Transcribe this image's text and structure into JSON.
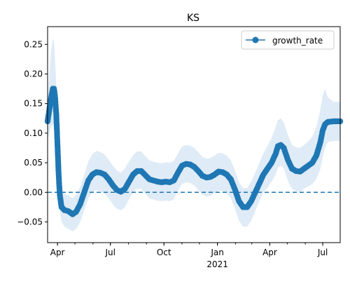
{
  "chart_data": {
    "type": "line",
    "title": "KS",
    "xlabel": "",
    "ylabel": "",
    "ylim": [
      -0.085,
      0.28
    ],
    "xlim": [
      "2020-03-15",
      "2021-07-31"
    ],
    "grid": false,
    "legend": {
      "position": "top-right",
      "entries": [
        "growth_rate"
      ]
    },
    "colors": {
      "series": "#1f77b4",
      "band": "#dce9f5",
      "zero_line": "#1f77b4"
    },
    "x_major_ticks": [
      {
        "date": "2020-04-01",
        "label": "Apr"
      },
      {
        "date": "2020-07-01",
        "label": "Jul"
      },
      {
        "date": "2020-10-01",
        "label": "Oct"
      },
      {
        "date": "2021-01-01",
        "label": "Jan"
      },
      {
        "date": "2021-04-01",
        "label": "Apr"
      },
      {
        "date": "2021-07-01",
        "label": "Jul"
      }
    ],
    "x_secondary_label": "2021",
    "y_ticks": [
      -0.05,
      0.0,
      0.05,
      0.1,
      0.15,
      0.2,
      0.25
    ],
    "y_tick_labels": [
      "−0.05",
      "0.00",
      "0.05",
      "0.10",
      "0.15",
      "0.20",
      "0.25"
    ],
    "reference_line": {
      "y": 0.0,
      "style": "dashed"
    },
    "series": [
      {
        "name": "growth_rate",
        "marker": "circle",
        "points": [
          [
            "2020-03-15",
            0.12
          ],
          [
            "2020-03-18",
            0.14
          ],
          [
            "2020-03-21",
            0.16
          ],
          [
            "2020-03-24",
            0.175
          ],
          [
            "2020-03-26",
            0.175
          ],
          [
            "2020-03-28",
            0.16
          ],
          [
            "2020-03-30",
            0.13
          ],
          [
            "2020-04-01",
            0.08
          ],
          [
            "2020-04-03",
            0.03
          ],
          [
            "2020-04-05",
            -0.005
          ],
          [
            "2020-04-08",
            -0.025
          ],
          [
            "2020-04-13",
            -0.03
          ],
          [
            "2020-04-20",
            -0.032
          ],
          [
            "2020-04-27",
            -0.037
          ],
          [
            "2020-05-03",
            -0.033
          ],
          [
            "2020-05-10",
            -0.02
          ],
          [
            "2020-05-17",
            0.0
          ],
          [
            "2020-05-24",
            0.02
          ],
          [
            "2020-05-31",
            0.03
          ],
          [
            "2020-06-07",
            0.034
          ],
          [
            "2020-06-14",
            0.033
          ],
          [
            "2020-06-21",
            0.03
          ],
          [
            "2020-06-28",
            0.022
          ],
          [
            "2020-07-05",
            0.012
          ],
          [
            "2020-07-12",
            0.004
          ],
          [
            "2020-07-19",
            0.001
          ],
          [
            "2020-07-26",
            0.006
          ],
          [
            "2020-08-02",
            0.018
          ],
          [
            "2020-08-09",
            0.03
          ],
          [
            "2020-08-16",
            0.036
          ],
          [
            "2020-08-23",
            0.036
          ],
          [
            "2020-08-30",
            0.029
          ],
          [
            "2020-09-06",
            0.022
          ],
          [
            "2020-09-13",
            0.02
          ],
          [
            "2020-09-20",
            0.018
          ],
          [
            "2020-09-27",
            0.017
          ],
          [
            "2020-10-04",
            0.018
          ],
          [
            "2020-10-11",
            0.017
          ],
          [
            "2020-10-18",
            0.02
          ],
          [
            "2020-10-25",
            0.033
          ],
          [
            "2020-11-01",
            0.045
          ],
          [
            "2020-11-08",
            0.048
          ],
          [
            "2020-11-15",
            0.047
          ],
          [
            "2020-11-22",
            0.043
          ],
          [
            "2020-11-29",
            0.036
          ],
          [
            "2020-12-06",
            0.028
          ],
          [
            "2020-12-13",
            0.025
          ],
          [
            "2020-12-20",
            0.026
          ],
          [
            "2020-12-27",
            0.03
          ],
          [
            "2021-01-03",
            0.035
          ],
          [
            "2021-01-10",
            0.034
          ],
          [
            "2021-01-17",
            0.03
          ],
          [
            "2021-01-24",
            0.022
          ],
          [
            "2021-01-31",
            0.005
          ],
          [
            "2021-02-07",
            -0.015
          ],
          [
            "2021-02-14",
            -0.025
          ],
          [
            "2021-02-21",
            -0.025
          ],
          [
            "2021-02-28",
            -0.015
          ],
          [
            "2021-03-07",
            0.0
          ],
          [
            "2021-03-14",
            0.015
          ],
          [
            "2021-03-21",
            0.03
          ],
          [
            "2021-03-28",
            0.04
          ],
          [
            "2021-04-04",
            0.05
          ],
          [
            "2021-04-11",
            0.065
          ],
          [
            "2021-04-15",
            0.078
          ],
          [
            "2021-04-20",
            0.08
          ],
          [
            "2021-04-25",
            0.075
          ],
          [
            "2021-05-02",
            0.055
          ],
          [
            "2021-05-09",
            0.04
          ],
          [
            "2021-05-16",
            0.036
          ],
          [
            "2021-05-23",
            0.035
          ],
          [
            "2021-05-30",
            0.04
          ],
          [
            "2021-06-06",
            0.045
          ],
          [
            "2021-06-13",
            0.05
          ],
          [
            "2021-06-20",
            0.062
          ],
          [
            "2021-06-27",
            0.085
          ],
          [
            "2021-07-01",
            0.105
          ],
          [
            "2021-07-05",
            0.115
          ],
          [
            "2021-07-10",
            0.119
          ],
          [
            "2021-07-20",
            0.12
          ],
          [
            "2021-07-31",
            0.12
          ]
        ],
        "band": [
          [
            "2020-03-15",
            0.09,
            0.15
          ],
          [
            "2020-03-18",
            0.1,
            0.2
          ],
          [
            "2020-03-21",
            0.11,
            0.24
          ],
          [
            "2020-03-24",
            0.115,
            0.26
          ],
          [
            "2020-03-26",
            0.11,
            0.255
          ],
          [
            "2020-03-28",
            0.1,
            0.22
          ],
          [
            "2020-03-30",
            0.08,
            0.18
          ],
          [
            "2020-04-01",
            0.04,
            0.12
          ],
          [
            "2020-04-03",
            0.0,
            0.06
          ],
          [
            "2020-04-05",
            -0.03,
            0.025
          ],
          [
            "2020-04-08",
            -0.05,
            0.005
          ],
          [
            "2020-04-13",
            -0.058,
            -0.003
          ],
          [
            "2020-04-20",
            -0.062,
            -0.005
          ],
          [
            "2020-04-27",
            -0.066,
            -0.01
          ],
          [
            "2020-05-03",
            -0.062,
            -0.005
          ],
          [
            "2020-05-10",
            -0.05,
            0.01
          ],
          [
            "2020-05-17",
            -0.03,
            0.03
          ],
          [
            "2020-05-24",
            -0.01,
            0.052
          ],
          [
            "2020-05-31",
            0.0,
            0.065
          ],
          [
            "2020-06-07",
            0.004,
            0.07
          ],
          [
            "2020-06-14",
            0.002,
            0.068
          ],
          [
            "2020-06-21",
            -0.002,
            0.064
          ],
          [
            "2020-06-28",
            -0.01,
            0.055
          ],
          [
            "2020-07-05",
            -0.02,
            0.045
          ],
          [
            "2020-07-12",
            -0.028,
            0.037
          ],
          [
            "2020-07-19",
            -0.03,
            0.033
          ],
          [
            "2020-07-26",
            -0.025,
            0.04
          ],
          [
            "2020-08-02",
            -0.012,
            0.052
          ],
          [
            "2020-08-09",
            0.0,
            0.063
          ],
          [
            "2020-08-16",
            0.006,
            0.069
          ],
          [
            "2020-08-23",
            0.006,
            0.069
          ],
          [
            "2020-08-30",
            -0.002,
            0.061
          ],
          [
            "2020-09-06",
            -0.01,
            0.054
          ],
          [
            "2020-09-13",
            -0.012,
            0.052
          ],
          [
            "2020-09-20",
            -0.014,
            0.05
          ],
          [
            "2020-09-27",
            -0.015,
            0.049
          ],
          [
            "2020-10-04",
            -0.014,
            0.051
          ],
          [
            "2020-10-11",
            -0.015,
            0.05
          ],
          [
            "2020-10-18",
            -0.012,
            0.053
          ],
          [
            "2020-10-25",
            0.002,
            0.065
          ],
          [
            "2020-11-01",
            0.014,
            0.077
          ],
          [
            "2020-11-08",
            0.017,
            0.08
          ],
          [
            "2020-11-15",
            0.016,
            0.079
          ],
          [
            "2020-11-22",
            0.012,
            0.075
          ],
          [
            "2020-11-29",
            0.004,
            0.068
          ],
          [
            "2020-12-06",
            -0.004,
            0.06
          ],
          [
            "2020-12-13",
            -0.007,
            0.057
          ],
          [
            "2020-12-20",
            -0.006,
            0.058
          ],
          [
            "2020-12-27",
            -0.002,
            0.062
          ],
          [
            "2021-01-03",
            0.003,
            0.067
          ],
          [
            "2021-01-10",
            0.002,
            0.066
          ],
          [
            "2021-01-17",
            -0.002,
            0.062
          ],
          [
            "2021-01-24",
            -0.01,
            0.054
          ],
          [
            "2021-01-31",
            -0.028,
            0.037
          ],
          [
            "2021-02-07",
            -0.048,
            0.017
          ],
          [
            "2021-02-14",
            -0.058,
            0.007
          ],
          [
            "2021-02-21",
            -0.058,
            0.007
          ],
          [
            "2021-02-28",
            -0.048,
            0.018
          ],
          [
            "2021-03-07",
            -0.032,
            0.033
          ],
          [
            "2021-03-14",
            -0.015,
            0.05
          ],
          [
            "2021-03-21",
            0.0,
            0.066
          ],
          [
            "2021-03-28",
            0.008,
            0.078
          ],
          [
            "2021-04-04",
            0.018,
            0.092
          ],
          [
            "2021-04-11",
            0.03,
            0.11
          ],
          [
            "2021-04-15",
            0.042,
            0.122
          ],
          [
            "2021-04-20",
            0.045,
            0.125
          ],
          [
            "2021-04-25",
            0.04,
            0.118
          ],
          [
            "2021-05-02",
            0.02,
            0.097
          ],
          [
            "2021-05-09",
            0.006,
            0.08
          ],
          [
            "2021-05-16",
            0.002,
            0.076
          ],
          [
            "2021-05-23",
            0.001,
            0.075
          ],
          [
            "2021-05-30",
            0.006,
            0.08
          ],
          [
            "2021-06-06",
            0.01,
            0.086
          ],
          [
            "2021-06-13",
            0.014,
            0.094
          ],
          [
            "2021-06-20",
            0.022,
            0.11
          ],
          [
            "2021-06-27",
            0.04,
            0.14
          ],
          [
            "2021-07-01",
            0.06,
            0.165
          ],
          [
            "2021-07-05",
            0.075,
            0.175
          ],
          [
            "2021-07-10",
            0.085,
            0.16
          ],
          [
            "2021-07-20",
            0.087,
            0.153
          ],
          [
            "2021-07-31",
            0.087,
            0.153
          ]
        ]
      }
    ]
  }
}
